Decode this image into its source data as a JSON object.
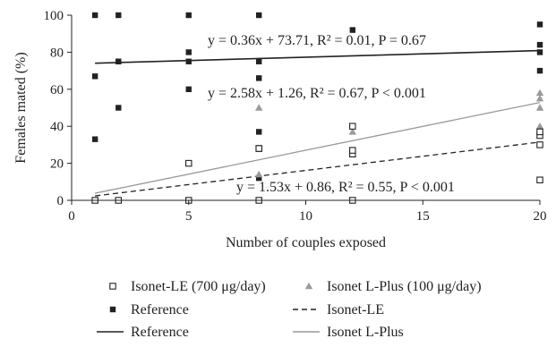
{
  "chart_data": {
    "type": "scatter",
    "xlabel": "Number of couples exposed",
    "ylabel": "Females mated (%)",
    "xlim": [
      0,
      20
    ],
    "ylim": [
      0,
      100
    ],
    "xticks": [
      0,
      5,
      10,
      15,
      20
    ],
    "yticks": [
      0,
      20,
      40,
      60,
      80,
      100
    ],
    "legend_position": "bottom",
    "grid": false,
    "series": [
      {
        "key": "isonet_le_pts",
        "name": "Isonet-LE (700 μg/day)",
        "marker": "open-square",
        "color": "#222222",
        "points": [
          [
            1,
            0
          ],
          [
            2,
            0
          ],
          [
            5,
            0
          ],
          [
            5,
            20
          ],
          [
            8,
            0
          ],
          [
            8,
            28
          ],
          [
            8,
            28
          ],
          [
            12,
            0
          ],
          [
            12,
            25
          ],
          [
            12,
            27
          ],
          [
            12,
            40
          ],
          [
            20,
            11
          ],
          [
            20,
            30
          ],
          [
            20,
            35
          ],
          [
            20,
            37
          ]
        ]
      },
      {
        "key": "isonet_lplus_pts",
        "name": "Isonet L-Plus (100 μg/day)",
        "marker": "triangle",
        "color": "#9a9a9a",
        "points": [
          [
            1,
            0
          ],
          [
            2,
            0
          ],
          [
            5,
            20
          ],
          [
            8,
            14
          ],
          [
            8,
            50
          ],
          [
            12,
            25
          ],
          [
            12,
            37
          ],
          [
            20,
            40
          ],
          [
            20,
            50
          ],
          [
            20,
            55
          ],
          [
            20,
            58
          ]
        ]
      },
      {
        "key": "reference_pts",
        "name": "Reference",
        "marker": "filled-square",
        "color": "#222222",
        "points": [
          [
            1,
            33
          ],
          [
            1,
            67
          ],
          [
            1,
            100
          ],
          [
            2,
            50
          ],
          [
            2,
            75
          ],
          [
            2,
            75
          ],
          [
            2,
            100
          ],
          [
            5,
            60
          ],
          [
            5,
            75
          ],
          [
            5,
            80
          ],
          [
            5,
            100
          ],
          [
            8,
            12
          ],
          [
            8,
            37
          ],
          [
            8,
            66
          ],
          [
            8,
            75
          ],
          [
            8,
            100
          ],
          [
            12,
            92
          ],
          [
            20,
            70
          ],
          [
            20,
            80
          ],
          [
            20,
            84
          ],
          [
            20,
            95
          ]
        ]
      }
    ],
    "trendlines": [
      {
        "key": "isonet_le_fit",
        "name": "Isonet-LE",
        "style": "dashed",
        "color": "#222222",
        "slope": 1.53,
        "intercept": 0.86,
        "x_range": [
          1,
          20
        ],
        "equation": "y = 1.53x + 0.86, R² = 0.55, P < 0.001"
      },
      {
        "key": "reference_fit",
        "name": "Reference",
        "style": "solid",
        "color": "#222222",
        "slope": 0.36,
        "intercept": 73.71,
        "x_range": [
          1,
          20
        ],
        "equation": "y = 0.36x + 73.71, R² = 0.01, P = 0.67"
      },
      {
        "key": "isonet_lplus_fit",
        "name": "Isonet L-Plus",
        "style": "solid",
        "color": "#9a9a9a",
        "slope": 2.58,
        "intercept": 1.26,
        "x_range": [
          1,
          20
        ],
        "equation": "y = 2.58x + 1.26, R² = 0.67, P < 0.001"
      }
    ],
    "legend": [
      {
        "series": "isonet_le_pts",
        "label": "Isonet-LE (700 μg/day)"
      },
      {
        "series": "isonet_lplus_pts",
        "label": "Isonet L-Plus (100 μg/day)"
      },
      {
        "series": "reference_pts",
        "label": "Reference"
      },
      {
        "series": "isonet_le_fit",
        "label": "Isonet-LE"
      },
      {
        "series": "reference_fit",
        "label": "Reference"
      },
      {
        "series": "isonet_lplus_fit",
        "label": "Isonet L-Plus"
      }
    ]
  }
}
